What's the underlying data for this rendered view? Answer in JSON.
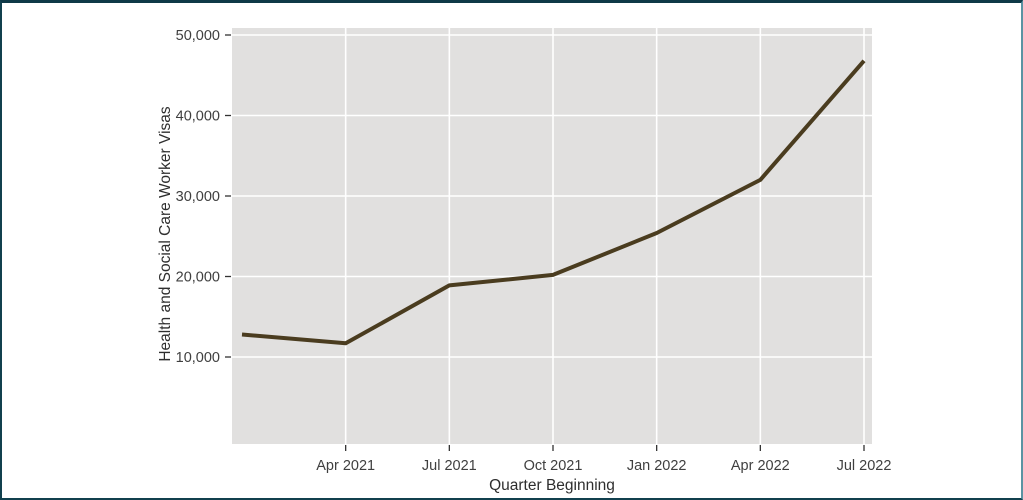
{
  "figure": {
    "kind": "line chart",
    "title": ""
  },
  "chart_data": {
    "type": "line",
    "title": "",
    "xlabel": "Quarter Beginning",
    "ylabel": "Health and Social Care Worker Visas",
    "x": [
      "Jan 2021",
      "Apr 2021",
      "Jul 2021",
      "Oct 2021",
      "Jan 2022",
      "Apr 2022",
      "Jul 2022"
    ],
    "x_month_index": [
      0,
      3,
      6,
      9,
      12,
      15,
      18
    ],
    "series": [
      {
        "name": "Health and Social Care Worker Visas",
        "values": [
          12800,
          11700,
          18900,
          20200,
          25400,
          32000,
          46800
        ]
      }
    ],
    "x_ticks": [
      {
        "label": "Apr 2021",
        "month": 3
      },
      {
        "label": "Jul 2021",
        "month": 6
      },
      {
        "label": "Oct 2021",
        "month": 9
      },
      {
        "label": "Jan 2022",
        "month": 12
      },
      {
        "label": "Apr 2022",
        "month": 15
      },
      {
        "label": "Jul 2022",
        "month": 18
      }
    ],
    "y_ticks": [
      {
        "label": "10,000",
        "value": 10000
      },
      {
        "label": "20,000",
        "value": 20000
      },
      {
        "label": "30,000",
        "value": 30000
      },
      {
        "label": "40,000",
        "value": 40000
      },
      {
        "label": "50,000",
        "value": 50000
      }
    ],
    "ylim": [
      0,
      50000
    ],
    "grid": "major white gridlines on gray panel",
    "legend_position": "none",
    "style": {
      "line_color": "#4a3c1f",
      "line_width": 4,
      "plot_bg": "#e1e0df",
      "grid_color": "#ffffff",
      "tick_mark_color": "#333333",
      "tick_text_color": "#3f3f3f",
      "axis_title_color": "#2e2e2e",
      "frame_border_color": "#11404e",
      "page_bg": "#ffffff"
    }
  }
}
